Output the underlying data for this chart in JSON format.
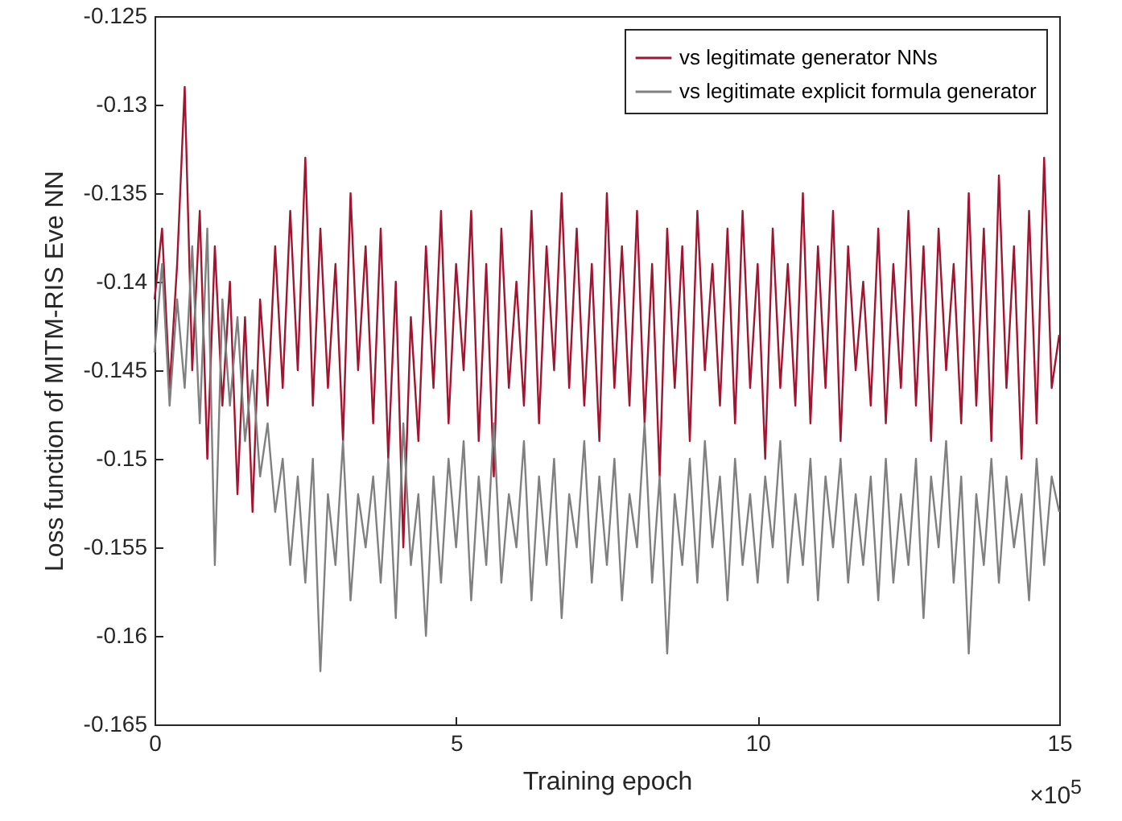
{
  "chart_data": {
    "type": "line",
    "xlabel": "Training epoch",
    "ylabel": "Loss function of MITM-RIS Eve NN",
    "annotations": [
      "×10$^{5}$"
    ],
    "x": [
      0,
      0.125,
      0.25,
      0.375,
      0.5,
      0.625,
      0.75,
      0.875,
      1,
      1.125,
      1.25,
      1.375,
      1.5,
      1.625,
      1.75,
      1.875,
      2,
      2.125,
      2.25,
      2.375,
      2.5,
      2.625,
      2.75,
      2.875,
      3,
      3.125,
      3.25,
      3.375,
      3.5,
      3.625,
      3.75,
      3.875,
      4,
      4.125,
      4.25,
      4.375,
      4.5,
      4.625,
      4.75,
      4.875,
      5,
      5.125,
      5.25,
      5.375,
      5.5,
      5.625,
      5.75,
      5.875,
      6,
      6.125,
      6.25,
      6.375,
      6.5,
      6.625,
      6.75,
      6.875,
      7,
      7.125,
      7.25,
      7.375,
      7.5,
      7.625,
      7.75,
      7.875,
      8,
      8.125,
      8.25,
      8.375,
      8.5,
      8.625,
      8.75,
      8.875,
      9,
      9.125,
      9.25,
      9.375,
      9.5,
      9.625,
      9.75,
      9.875,
      10,
      10.125,
      10.25,
      10.375,
      10.5,
      10.625,
      10.75,
      10.875,
      11,
      11.125,
      11.25,
      11.375,
      11.5,
      11.625,
      11.75,
      11.875,
      12,
      12.125,
      12.25,
      12.375,
      12.5,
      12.625,
      12.75,
      12.875,
      13,
      13.125,
      13.25,
      13.375,
      13.5,
      13.625,
      13.75,
      13.875,
      14,
      14.125,
      14.25,
      14.375,
      14.5,
      14.625,
      14.75,
      14.875,
      15
    ],
    "series": [
      {
        "name": "vs legitimate generator NNs",
        "color": "#a2142f",
        "values": [
          -0.141,
          -0.137,
          -0.146,
          -0.139,
          -0.129,
          -0.145,
          -0.136,
          -0.15,
          -0.138,
          -0.147,
          -0.14,
          -0.152,
          -0.142,
          -0.153,
          -0.141,
          -0.147,
          -0.138,
          -0.146,
          -0.136,
          -0.145,
          -0.133,
          -0.147,
          -0.137,
          -0.146,
          -0.139,
          -0.149,
          -0.135,
          -0.145,
          -0.138,
          -0.148,
          -0.137,
          -0.15,
          -0.14,
          -0.155,
          -0.142,
          -0.149,
          -0.138,
          -0.146,
          -0.136,
          -0.148,
          -0.139,
          -0.145,
          -0.136,
          -0.149,
          -0.139,
          -0.151,
          -0.137,
          -0.146,
          -0.14,
          -0.147,
          -0.136,
          -0.148,
          -0.138,
          -0.145,
          -0.135,
          -0.146,
          -0.137,
          -0.147,
          -0.139,
          -0.149,
          -0.135,
          -0.146,
          -0.138,
          -0.147,
          -0.136,
          -0.148,
          -0.139,
          -0.151,
          -0.137,
          -0.146,
          -0.138,
          -0.149,
          -0.136,
          -0.145,
          -0.139,
          -0.147,
          -0.137,
          -0.148,
          -0.136,
          -0.146,
          -0.139,
          -0.15,
          -0.137,
          -0.146,
          -0.139,
          -0.147,
          -0.135,
          -0.148,
          -0.138,
          -0.146,
          -0.136,
          -0.149,
          -0.138,
          -0.145,
          -0.14,
          -0.147,
          -0.137,
          -0.148,
          -0.139,
          -0.146,
          -0.136,
          -0.147,
          -0.138,
          -0.149,
          -0.137,
          -0.145,
          -0.139,
          -0.148,
          -0.135,
          -0.147,
          -0.137,
          -0.149,
          -0.134,
          -0.146,
          -0.138,
          -0.15,
          -0.136,
          -0.148,
          -0.133,
          -0.146,
          -0.143
        ]
      },
      {
        "name": "vs legitimate explicit formula generator",
        "color": "#808080",
        "values": [
          -0.144,
          -0.139,
          -0.147,
          -0.141,
          -0.146,
          -0.138,
          -0.148,
          -0.137,
          -0.156,
          -0.141,
          -0.147,
          -0.142,
          -0.149,
          -0.145,
          -0.151,
          -0.148,
          -0.153,
          -0.15,
          -0.156,
          -0.151,
          -0.157,
          -0.15,
          -0.162,
          -0.152,
          -0.156,
          -0.149,
          -0.158,
          -0.152,
          -0.155,
          -0.151,
          -0.157,
          -0.15,
          -0.159,
          -0.148,
          -0.156,
          -0.152,
          -0.16,
          -0.151,
          -0.157,
          -0.15,
          -0.155,
          -0.149,
          -0.158,
          -0.151,
          -0.156,
          -0.148,
          -0.157,
          -0.152,
          -0.155,
          -0.149,
          -0.158,
          -0.151,
          -0.156,
          -0.15,
          -0.159,
          -0.152,
          -0.155,
          -0.149,
          -0.157,
          -0.151,
          -0.156,
          -0.15,
          -0.158,
          -0.152,
          -0.155,
          -0.148,
          -0.157,
          -0.151,
          -0.161,
          -0.152,
          -0.156,
          -0.15,
          -0.157,
          -0.149,
          -0.155,
          -0.151,
          -0.158,
          -0.15,
          -0.156,
          -0.152,
          -0.157,
          -0.151,
          -0.155,
          -0.149,
          -0.157,
          -0.152,
          -0.156,
          -0.15,
          -0.158,
          -0.151,
          -0.155,
          -0.15,
          -0.157,
          -0.152,
          -0.156,
          -0.151,
          -0.158,
          -0.15,
          -0.157,
          -0.152,
          -0.156,
          -0.15,
          -0.159,
          -0.151,
          -0.155,
          -0.149,
          -0.157,
          -0.151,
          -0.161,
          -0.152,
          -0.156,
          -0.15,
          -0.157,
          -0.151,
          -0.155,
          -0.152,
          -0.158,
          -0.15,
          -0.156,
          -0.151,
          -0.153
        ]
      }
    ],
    "xlim": [
      0,
      15
    ],
    "xticks": [
      0,
      5,
      10,
      15
    ],
    "ylim": [
      -0.165,
      -0.125
    ],
    "yticks": [
      -0.165,
      -0.16,
      -0.155,
      -0.15,
      -0.145,
      -0.14,
      -0.135,
      -0.13,
      -0.125
    ],
    "grid": false,
    "legend": "top right",
    "line_style": "solid",
    "marker": "none"
  }
}
